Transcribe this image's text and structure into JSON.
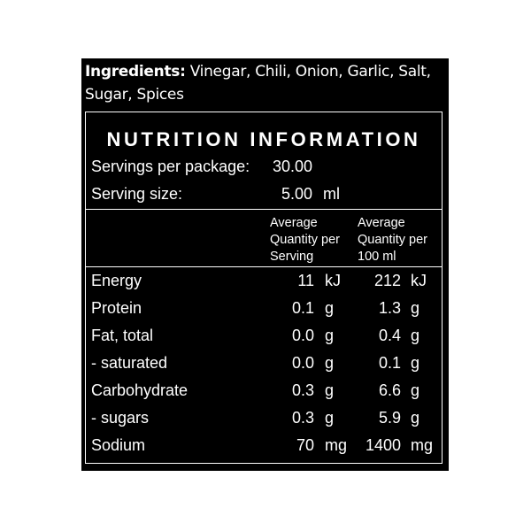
{
  "ingredients": {
    "heading": "Ingredients:",
    "text": " Vinegar, Chili, Onion, Garlic, Salt, Sugar, Spices"
  },
  "nutrition": {
    "title": "NUTRITION INFORMATION",
    "servings_per_package_label": "Servings per package:",
    "servings_per_package_value": "30.00",
    "serving_size_label": "Serving size:",
    "serving_size_value": "5.00",
    "serving_size_unit": "ml",
    "col_per_serving": "Average Quantity per Serving",
    "col_per_100": "Average Quantity per 100 ml",
    "rows": [
      {
        "label": "Energy",
        "serving": "11",
        "serving_unit": "kJ",
        "per100": "212",
        "per100_unit": "kJ"
      },
      {
        "label": "Protein",
        "serving": "0.1",
        "serving_unit": "g",
        "per100": "1.3",
        "per100_unit": "g"
      },
      {
        "label": "Fat, total",
        "serving": "0.0",
        "serving_unit": "g",
        "per100": "0.4",
        "per100_unit": "g"
      },
      {
        "label": "- saturated",
        "serving": "0.0",
        "serving_unit": "g",
        "per100": "0.1",
        "per100_unit": "g"
      },
      {
        "label": "Carbohydrate",
        "serving": "0.3",
        "serving_unit": "g",
        "per100": "6.6",
        "per100_unit": "g"
      },
      {
        "label": "- sugars",
        "serving": "0.3",
        "serving_unit": "g",
        "per100": "5.9",
        "per100_unit": "g"
      },
      {
        "label": "Sodium",
        "serving": "70",
        "serving_unit": "mg",
        "per100": "1400",
        "per100_unit": "mg"
      }
    ]
  }
}
